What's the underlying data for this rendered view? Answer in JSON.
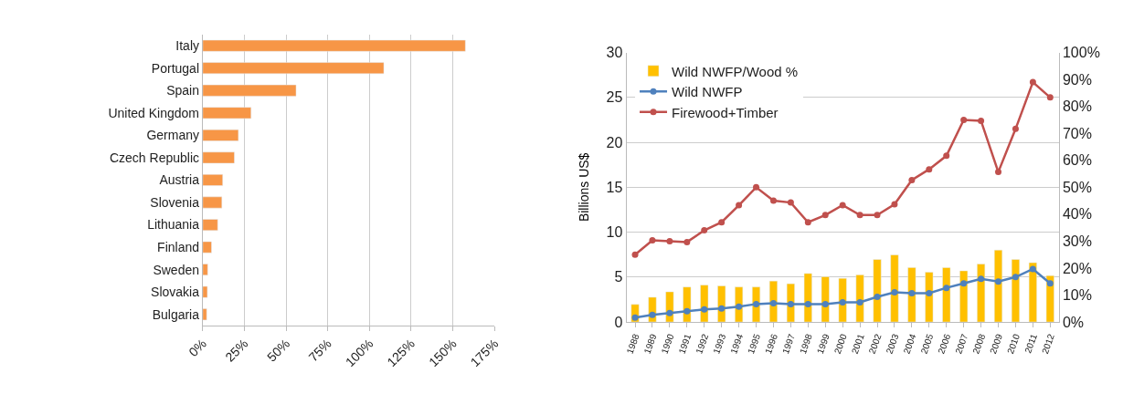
{
  "chart_data": [
    {
      "type": "bar",
      "orientation": "horizontal",
      "categories": [
        "Italy",
        "Portugal",
        "Spain",
        "United Kingdom",
        "Germany",
        "Czech Republic",
        "Austria",
        "Slovenia",
        "Lithuania",
        "Finland",
        "Sweden",
        "Slovakia",
        "Bulgaria"
      ],
      "values": [
        157.5,
        108.6,
        56,
        29,
        21.4,
        19,
        12,
        11.5,
        9,
        5.3,
        3,
        2.8,
        2.4
      ],
      "color": "#f79646",
      "xlim": [
        0,
        175
      ],
      "xticks": [
        {
          "value": 0,
          "label": "0%"
        },
        {
          "value": 25,
          "label": "25%"
        },
        {
          "value": 50,
          "label": "50%"
        },
        {
          "value": 75,
          "label": "75%"
        },
        {
          "value": 100,
          "label": "100%"
        },
        {
          "value": 125,
          "label": "125%"
        },
        {
          "value": 150,
          "label": "150%"
        },
        {
          "value": 175,
          "label": "175%"
        }
      ],
      "grid": "x"
    },
    {
      "type": "line",
      "categories": [
        "1988",
        "1989",
        "1990",
        "1991",
        "1992",
        "1993",
        "1994",
        "1995",
        "1996",
        "1997",
        "1998",
        "1999",
        "2000",
        "2001",
        "2002",
        "2003",
        "2004",
        "2005",
        "2006",
        "2007",
        "2008",
        "2009",
        "2010",
        "2011",
        "2012"
      ],
      "ylabel": "Billions US$",
      "ylim": [
        0,
        30
      ],
      "yticks": [
        0,
        5,
        10,
        15,
        20,
        25,
        30
      ],
      "y2lim": [
        0,
        100
      ],
      "y2ticks": [
        {
          "value": 0,
          "label": "0%"
        },
        {
          "value": 10,
          "label": "10%"
        },
        {
          "value": 20,
          "label": "20%"
        },
        {
          "value": 30,
          "label": "30%"
        },
        {
          "value": 40,
          "label": "40%"
        },
        {
          "value": 50,
          "label": "50%"
        },
        {
          "value": 60,
          "label": "60%"
        },
        {
          "value": 70,
          "label": "70%"
        },
        {
          "value": 80,
          "label": "80%"
        },
        {
          "value": 90,
          "label": "90%"
        },
        {
          "value": 100,
          "label": "100%"
        }
      ],
      "grid": "y",
      "legend": "top left",
      "marker": "circle",
      "series": [
        {
          "name": "Wild NWFP/Wood %",
          "type": "bar",
          "axis": "y2",
          "color": "#ffc000",
          "values": [
            6.5,
            9.2,
            11.2,
            13,
            13.7,
            13.4,
            13,
            13,
            15.2,
            14.2,
            18,
            16.8,
            16.2,
            17.5,
            23.2,
            24.9,
            20.2,
            18.5,
            20.2,
            19,
            21.5,
            26.7,
            23.2,
            22,
            17.2
          ]
        },
        {
          "name": "Wild NWFP",
          "type": "line",
          "color": "#4f81bd",
          "values": [
            0.5,
            0.8,
            1.0,
            1.2,
            1.4,
            1.5,
            1.7,
            2.0,
            2.1,
            2.0,
            2.0,
            2.0,
            2.2,
            2.2,
            2.8,
            3.3,
            3.2,
            3.2,
            3.8,
            4.3,
            4.8,
            4.5,
            5.0,
            5.9,
            4.3
          ]
        },
        {
          "name": "Firewood+Timber",
          "type": "line",
          "color": "#c0504d",
          "values": [
            7.5,
            9.1,
            9.0,
            8.9,
            10.2,
            11.1,
            13.0,
            15.0,
            13.5,
            13.3,
            11.1,
            11.9,
            13.0,
            11.9,
            11.9,
            13.1,
            15.8,
            17.0,
            18.5,
            22.5,
            22.4,
            16.7,
            21.5,
            26.7,
            25.0
          ]
        }
      ]
    }
  ]
}
